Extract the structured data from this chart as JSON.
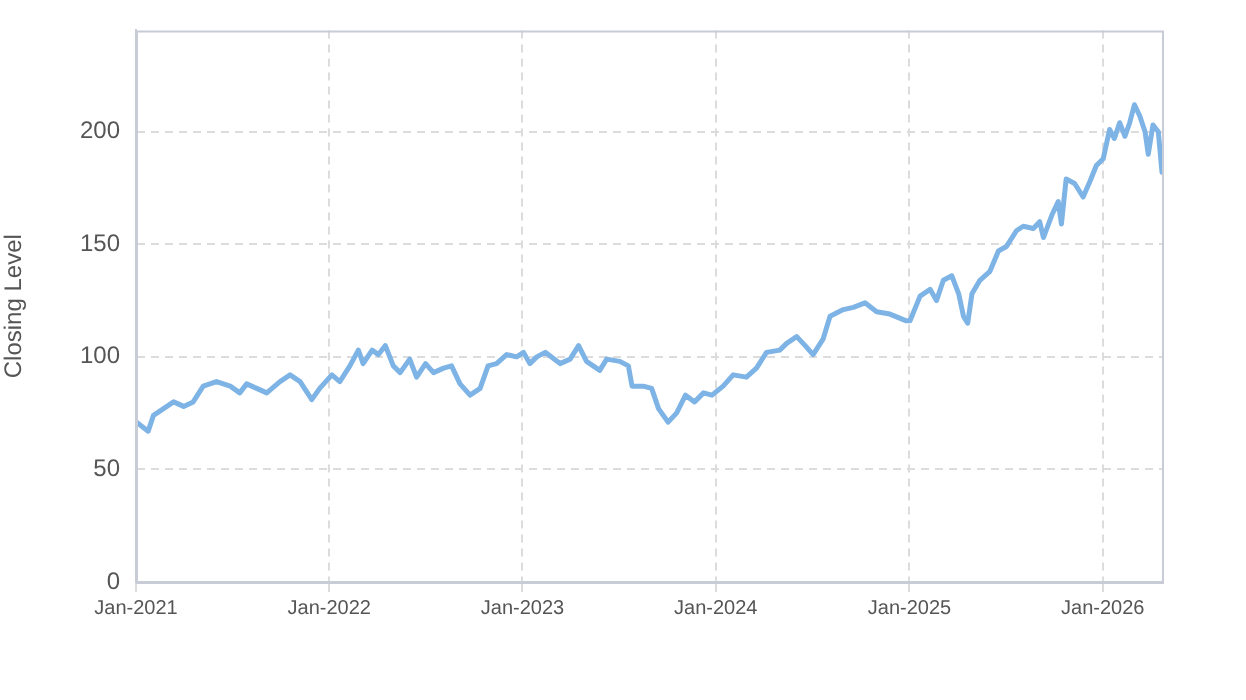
{
  "chart_data": {
    "type": "line",
    "ylabel": "Closing Level",
    "grid": true,
    "legend": false,
    "marker": "none",
    "line_style": "solid",
    "xlim": [
      "2021-01-01",
      "2026-04-23"
    ],
    "xticks": [
      {
        "value": "2021-01-01",
        "label": "Jan-2021"
      },
      {
        "value": "2022-01-01",
        "label": "Jan-2022"
      },
      {
        "value": "2023-01-01",
        "label": "Jan-2023"
      },
      {
        "value": "2024-01-01",
        "label": "Jan-2024"
      },
      {
        "value": "2025-01-01",
        "label": "Jan-2025"
      },
      {
        "value": "2026-01-01",
        "label": "Jan-2026"
      }
    ],
    "ylim": [
      0,
      245
    ],
    "yticks": [
      0,
      50,
      100,
      150,
      200
    ],
    "x": [
      "2021-01-02",
      "2021-01-24",
      "2021-02-03",
      "2021-02-22",
      "2021-03-13",
      "2021-04-01",
      "2021-04-19",
      "2021-05-08",
      "2021-06-02",
      "2021-06-28",
      "2021-07-16",
      "2021-07-29",
      "2021-08-17",
      "2021-09-05",
      "2021-09-30",
      "2021-10-19",
      "2021-11-07",
      "2021-11-29",
      "2021-12-14",
      "2022-01-06",
      "2022-01-21",
      "2022-02-09",
      "2022-02-25",
      "2022-03-06",
      "2022-03-23",
      "2022-04-04",
      "2022-04-17",
      "2022-05-02",
      "2022-05-15",
      "2022-06-02",
      "2022-06-15",
      "2022-07-02",
      "2022-07-17",
      "2022-08-05",
      "2022-08-20",
      "2022-09-05",
      "2022-09-24",
      "2022-10-13",
      "2022-10-28",
      "2022-11-13",
      "2022-12-02",
      "2022-12-21",
      "2023-01-03",
      "2023-01-15",
      "2023-01-28",
      "2023-02-13",
      "2023-03-13",
      "2023-04-01",
      "2023-04-17",
      "2023-05-02",
      "2023-05-27",
      "2023-06-09",
      "2023-07-04",
      "2023-07-20",
      "2023-07-27",
      "2023-08-17",
      "2023-09-02",
      "2023-09-15",
      "2023-10-03",
      "2023-10-19",
      "2023-11-05",
      "2023-11-22",
      "2023-12-09",
      "2023-12-25",
      "2024-01-15",
      "2024-02-03",
      "2024-02-28",
      "2024-03-18",
      "2024-04-06",
      "2024-05-01",
      "2024-05-14",
      "2024-06-02",
      "2024-06-18",
      "2024-07-03",
      "2024-07-22",
      "2024-08-04",
      "2024-08-29",
      "2024-09-17",
      "2024-10-09",
      "2024-10-31",
      "2024-11-25",
      "2024-12-26",
      "2025-01-02",
      "2025-01-21",
      "2025-02-09",
      "2025-02-21",
      "2025-03-06",
      "2025-03-22",
      "2025-04-04",
      "2025-04-13",
      "2025-04-21",
      "2025-04-29",
      "2025-05-14",
      "2025-06-02",
      "2025-06-18",
      "2025-07-03",
      "2025-07-22",
      "2025-08-04",
      "2025-08-23",
      "2025-09-04",
      "2025-09-11",
      "2025-09-27",
      "2025-10-09",
      "2025-10-15",
      "2025-10-24",
      "2025-11-09",
      "2025-11-25",
      "2025-12-08",
      "2025-12-20",
      "2026-01-02",
      "2026-01-14",
      "2026-01-23",
      "2026-02-02",
      "2026-02-12",
      "2026-02-21",
      "2026-03-02",
      "2026-03-12",
      "2026-03-22",
      "2026-03-28",
      "2026-04-06",
      "2026-04-16",
      "2026-04-23"
    ],
    "series": [
      {
        "color": "#7eb3e6",
        "values": [
          71,
          67,
          74,
          77,
          80,
          78,
          80,
          87,
          89,
          87,
          84,
          88,
          86,
          84,
          89,
          92,
          89,
          81,
          86,
          92,
          89,
          96,
          103,
          97,
          103,
          101,
          105,
          96,
          93,
          99,
          91,
          97,
          93,
          95,
          96,
          88,
          83,
          86,
          96,
          97,
          101,
          100,
          102,
          97,
          100,
          102,
          97,
          99,
          105,
          98,
          94,
          99,
          98,
          96,
          87,
          87,
          86,
          77,
          71,
          75,
          83,
          80,
          84,
          83,
          87,
          92,
          91,
          95,
          102,
          103,
          106,
          109,
          105,
          101,
          108,
          118,
          121,
          122,
          124,
          120,
          119,
          116,
          116,
          127,
          130,
          125,
          134,
          136,
          128,
          118,
          115,
          128,
          134,
          138,
          147,
          149,
          156,
          158,
          157,
          160,
          153,
          163,
          169,
          159,
          179,
          177,
          171,
          178,
          185,
          188,
          201,
          197,
          204,
          198,
          204,
          212,
          207,
          200,
          190,
          203,
          200,
          182
        ]
      }
    ]
  }
}
